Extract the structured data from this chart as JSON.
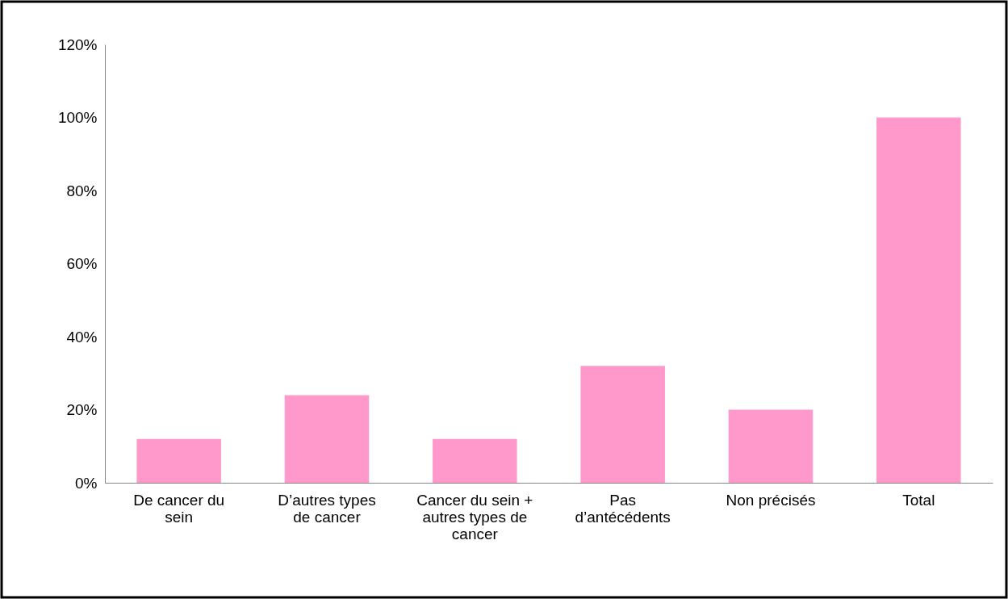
{
  "chart_data": {
    "type": "bar",
    "categories": [
      "De cancer du sein",
      "D’autres types de cancer",
      "Cancer du sein + autres types de cancer",
      "Pas d’antécédents",
      "Non précisés",
      "Total"
    ],
    "values": [
      12,
      24,
      12,
      32,
      20,
      100
    ],
    "color": "#ff99cc",
    "ylim": [
      0,
      120
    ],
    "yticks": [
      {
        "value": 0,
        "label": "0%"
      },
      {
        "value": 20,
        "label": "20%"
      },
      {
        "value": 40,
        "label": "40%"
      },
      {
        "value": 60,
        "label": "60%"
      },
      {
        "value": 80,
        "label": "80%"
      },
      {
        "value": 100,
        "label": "100%"
      },
      {
        "value": 120,
        "label": "120%"
      }
    ],
    "grid": false
  }
}
